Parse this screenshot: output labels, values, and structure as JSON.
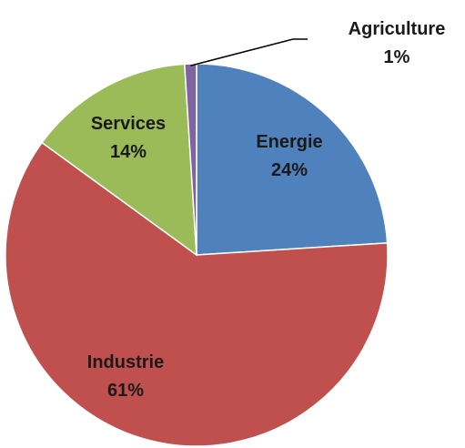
{
  "chart_data": {
    "type": "pie",
    "slices": [
      {
        "label": "Energie",
        "value": 24,
        "value_label": "24%",
        "color": "#4f81bd"
      },
      {
        "label": "Industrie",
        "value": 61,
        "value_label": "61%",
        "color": "#c0504d"
      },
      {
        "label": "Services",
        "value": 14,
        "value_label": "14%",
        "color": "#9bbb59"
      },
      {
        "label": "Agriculture",
        "value": 1,
        "value_label": "1%",
        "color": "#8064a2"
      }
    ],
    "start": "12 o'clock",
    "direction": "clockwise",
    "legend": "none"
  }
}
